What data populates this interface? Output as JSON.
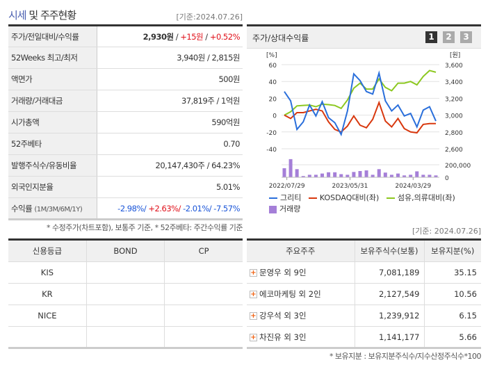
{
  "header": {
    "title_highlight": "시세",
    "title_rest": " 및 주주현황",
    "basis": "[기준:2024.07.26]"
  },
  "info_rows": [
    {
      "label": "주가/전일대비/수익률",
      "price": "2,930원",
      "sep1": " / ",
      "change": "+15원",
      "sep2": " / ",
      "rate": "+0.52%"
    },
    {
      "label": "52Weeks 최고/최저",
      "value": "3,940원 / 2,815원"
    },
    {
      "label": "액면가",
      "value": "500원"
    },
    {
      "label": "거래량/거래대금",
      "value": "37,819주 / 1억원"
    },
    {
      "label": "시가총액",
      "value": "590억원"
    },
    {
      "label": "52주베타",
      "value": "0.70"
    },
    {
      "label": "발행주식수/유동비율",
      "value": "20,147,430주 / 64.23%"
    },
    {
      "label": "외국인지분율",
      "value": "5.01%"
    },
    {
      "label": "수익률",
      "label_sub": "(1M/3M/6M/1Y)",
      "r1": "-2.98%/",
      "r2": " +2.63%/",
      "r3": " -2.01%/",
      "r4": " -7.57%"
    }
  ],
  "info_note": "* 수정주가(차트포함), 보통주 기준, * 52주베타: 주간수익률 기준",
  "chart_panel": {
    "title": "주가/상대수익률",
    "pages": [
      "1",
      "2",
      "3"
    ],
    "active_page": "1"
  },
  "chart_data": {
    "type": "line",
    "left_unit": "[%]",
    "right_unit": "[원]",
    "left_ticks": [
      "60",
      "40",
      "20",
      "0",
      "-20",
      "-40"
    ],
    "right_ticks": [
      "3,600",
      "3,400",
      "3,200",
      "3,000",
      "2,800",
      "2,600"
    ],
    "volume_ticks": [
      "200,000",
      "0"
    ],
    "ylim_left": [
      -40,
      60
    ],
    "ylim_right": [
      2600,
      3600
    ],
    "x_labels": [
      "2022/07/29",
      "2023/05/31",
      "2024/03/29"
    ],
    "series": [
      {
        "name": "그리티",
        "color": "#2a6fdb",
        "values": [
          28,
          17,
          -17,
          -8,
          12,
          -1,
          16,
          -3,
          -9,
          -23,
          5,
          49,
          41,
          28,
          25,
          50,
          17,
          5,
          12,
          -1,
          2,
          -14,
          6,
          10,
          -7
        ]
      },
      {
        "name": "KOSDAQ대비(좌)",
        "color": "#d8380e",
        "values": [
          0,
          -4,
          3,
          3,
          5,
          7,
          5,
          -8,
          -17,
          -20,
          -13,
          -1,
          -12,
          -15,
          -5,
          15,
          -7,
          -14,
          -4,
          -16,
          -20,
          -21,
          -11,
          -10,
          -10
        ]
      },
      {
        "name": "섬유,의류대비(좌)",
        "color": "#8cc820",
        "values": [
          0,
          4,
          11,
          11.5,
          12,
          10,
          13,
          12.5,
          11.5,
          8,
          18,
          32,
          38,
          31,
          31,
          43,
          33,
          29,
          38,
          38,
          40,
          36,
          46,
          53,
          51
        ]
      }
    ],
    "volume": {
      "name": "거래량",
      "color": "#a57fd8",
      "values": [
        145000,
        290000,
        130000,
        20000,
        40000,
        40000,
        60000,
        80000,
        80000,
        50000,
        40000,
        85000,
        100000,
        110000,
        40000,
        130000,
        75000,
        40000,
        60000,
        30000,
        40000,
        95000,
        40000,
        40000,
        30000
      ]
    }
  },
  "credit": {
    "headers": [
      "신용등급",
      "BOND",
      "CP"
    ],
    "rows": [
      [
        "KIS",
        "",
        ""
      ],
      [
        "KR",
        "",
        ""
      ],
      [
        "NICE",
        "",
        ""
      ],
      [
        "",
        "",
        ""
      ]
    ]
  },
  "holders": {
    "basis": "[기준: 2024.07.26]",
    "headers": [
      "주요주주",
      "보유주식수(보통)",
      "보유지분(%)"
    ],
    "rows": [
      [
        "문영우 외 9인",
        "7,081,189",
        "35.15"
      ],
      [
        "에코마케팅 외 2인",
        "2,127,549",
        "10.56"
      ],
      [
        "강우석 외 3인",
        "1,239,912",
        "6.15"
      ],
      [
        "차진유 외 3인",
        "1,141,177",
        "5.66"
      ]
    ],
    "note": "* 보유지분 : 보유지분주식수/지수산정주식수*100"
  }
}
